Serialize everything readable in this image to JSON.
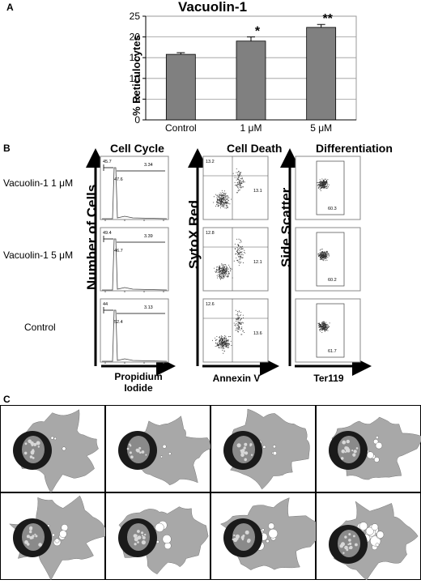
{
  "panel_a": {
    "letter": "A",
    "chart_data": {
      "type": "bar",
      "title": "Vacuolin-1",
      "xlabel": "",
      "ylabel": "% Reticulocytes",
      "categories": [
        "Control",
        "1 μM",
        "5 μM"
      ],
      "values": [
        15.8,
        19.0,
        22.3
      ],
      "errors": [
        0.4,
        1.0,
        0.7
      ],
      "significance": [
        "",
        "*",
        "**"
      ],
      "ylim": [
        0,
        25
      ],
      "yticks": [
        "0",
        "5",
        "10",
        "15",
        "20",
        "25"
      ],
      "grid": true,
      "bar_color": "#808080"
    }
  },
  "panel_b": {
    "letter": "B",
    "columns": [
      {
        "title": "Cell Cycle",
        "ylabel": "Number of Cells",
        "xlabel_line1": "Propidium",
        "xlabel_line2": "Iodide"
      },
      {
        "title": "Cell Death",
        "ylabel": "SytoX Red",
        "xlabel_line1": "Annexin V",
        "xlabel_line2": ""
      },
      {
        "title": "Differentiation",
        "ylabel": "Side Scatter",
        "xlabel_line1": "Ter119",
        "xlabel_line2": ""
      }
    ],
    "rows": [
      {
        "label": "Vacuolin-1 1 μM",
        "cc": [
          "45.7",
          "47.6",
          "3.34"
        ],
        "cd": [
          "13.2",
          "13.1"
        ],
        "diff": "60.3"
      },
      {
        "label": "Vacuolin-1 5 μM",
        "cc": [
          "49.4",
          "46.7",
          "3.39"
        ],
        "cd": [
          "12.8",
          "12.1"
        ],
        "diff": "60.2"
      },
      {
        "label": "Control",
        "cc": [
          "44",
          "52.4",
          "3.13"
        ],
        "cd": [
          "12.6",
          "13.6"
        ],
        "diff": "61.7"
      }
    ]
  },
  "panel_c": {
    "letter": "C",
    "frames": 8,
    "colors": {
      "cytoplasm": "#a8a8a8",
      "nucleus": "#1a1a1a",
      "border": "#000000"
    }
  }
}
